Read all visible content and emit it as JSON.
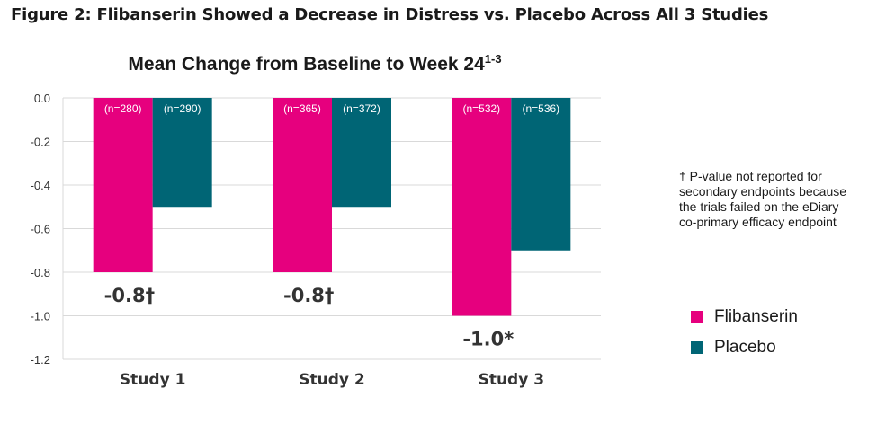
{
  "figure_title": "Figure 2: Flibanserin Showed a Decrease in Distress vs. Placebo Across All 3 Studies",
  "footnote": "† P-value not reported for secondary endpoints because the trials failed on the eDiary co-primary efficacy endpoint",
  "chart_data": {
    "type": "bar",
    "title": "Mean Change from Baseline to Week 24",
    "title_superscript": "1-3",
    "categories": [
      "Study 1",
      "Study 2",
      "Study 3"
    ],
    "series": [
      {
        "name": "Flibanserin",
        "color": "#e6007e",
        "values": [
          -0.8,
          -0.8,
          -1.0
        ],
        "n_labels": [
          "(n=280)",
          "(n=365)",
          "(n=532)"
        ]
      },
      {
        "name": "Placebo",
        "color": "#006575",
        "values": [
          -0.5,
          -0.5,
          -0.7
        ],
        "n_labels": [
          "(n=290)",
          "(n=372)",
          "(n=536)"
        ]
      }
    ],
    "data_labels": [
      "-0.8†",
      "-0.8†",
      "-1.0*"
    ],
    "yticks": [
      "0.0",
      "-0.2",
      "-0.4",
      "-0.6",
      "-0.8",
      "-1.0",
      "-1.2"
    ],
    "ylim": [
      -1.2,
      0.0
    ],
    "grid": true,
    "legend_position": "right"
  }
}
